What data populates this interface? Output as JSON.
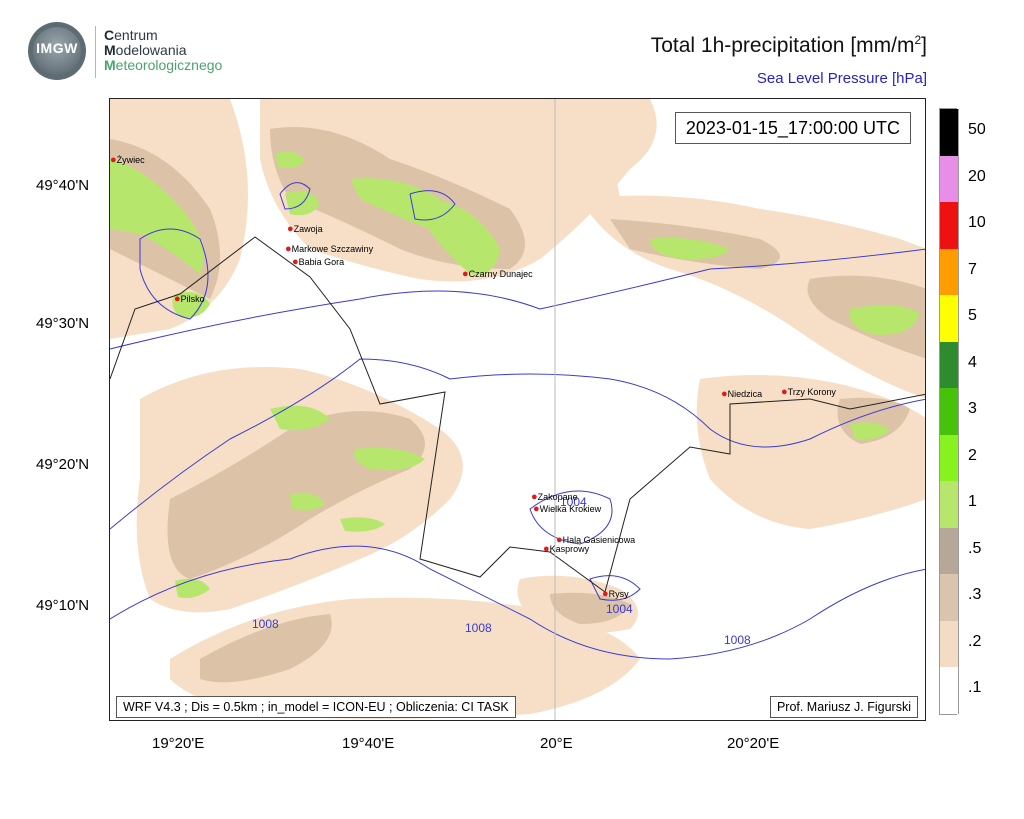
{
  "header": {
    "logo_text": "IMGW",
    "org_line1_initial": "C",
    "org_line1_rest": "entrum",
    "org_line2_initial": "M",
    "org_line2_rest": "odelowania",
    "org_line3_initial": "M",
    "org_line3_rest": "eteorologicznego",
    "title_main": "Total 1h-precipitation [mm/m",
    "title_sup": "2",
    "title_end": "]",
    "subtitle": "Sea Level Pressure [hPa]"
  },
  "map": {
    "timestamp": "2023-01-15_17:00:00 UTC",
    "model_info": "WRF V4.3 ; Dis = 0.5km ; in_model = ICON-EU ; Obliczenia: CI TASK",
    "author": "Prof. Mariusz J. Figurski",
    "lat_labels": [
      "49°40'N",
      "49°30'N",
      "49°20'N",
      "49°10'N"
    ],
    "lon_labels": [
      "19°20'E",
      "19°40'E",
      "20°E",
      "20°20'E"
    ],
    "isobar_labels": [
      "1008",
      "1008",
      "1008",
      "1004",
      "1004"
    ],
    "cities": [
      "Żywiec",
      "Zawoja",
      "Markowe Szczawiny",
      "Babia Gora",
      "Pilsko",
      "Czarny Dunajec",
      "Zakopane",
      "Wielka Krokiew",
      "Hala Gasienicowa",
      "Kasprowy",
      "Rysy",
      "Niedzica",
      "Trzy Korony"
    ],
    "colors": {
      "city_dot": "#e01b1b",
      "isobar": "#3a3ad0",
      "border": "#222222"
    }
  },
  "legend": {
    "labels": [
      "50",
      "20",
      "10",
      "7",
      "5",
      "4",
      "3",
      "2",
      "1",
      ".5",
      ".3",
      ".2",
      ".1"
    ],
    "colors": [
      "#000000",
      "#e88ee8",
      "#ee1111",
      "#ff9d00",
      "#ffff00",
      "#2e8b2e",
      "#47c20a",
      "#88f21e",
      "#b6e66c",
      "#b6a898",
      "#d9c4ae",
      "#f4dcc4",
      "#ffffff"
    ]
  }
}
